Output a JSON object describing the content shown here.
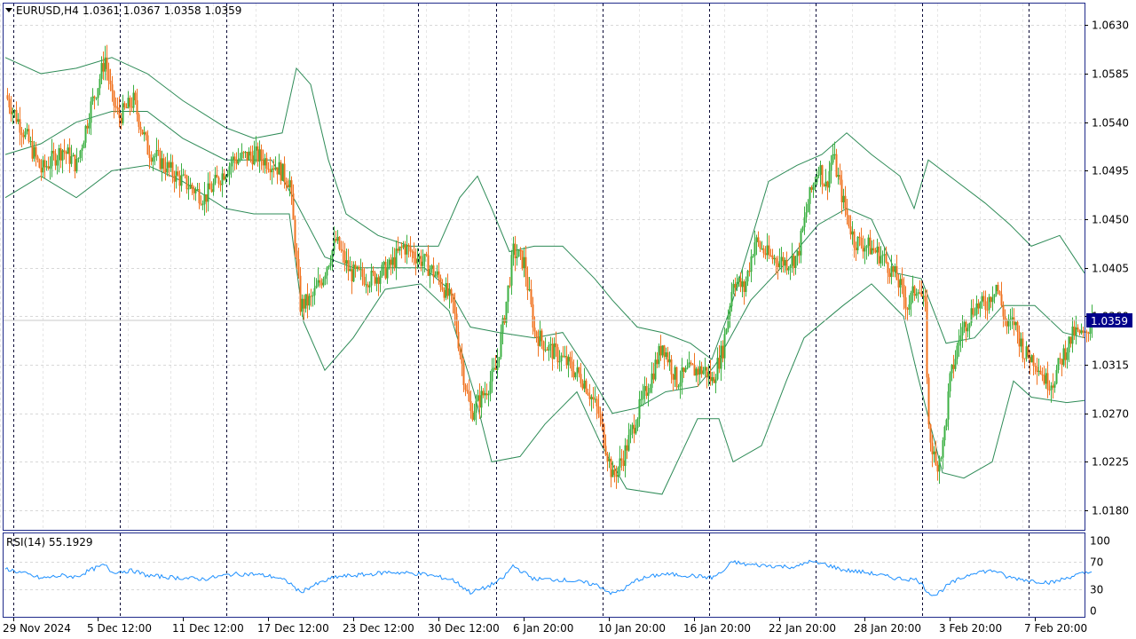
{
  "symbol": "EURUSD,H4",
  "ohlc_readout": "1.0361 1.0367 1.0358 1.0359",
  "current_price_label": "1.0359",
  "rsi_label": "RSI(14) 55.1929",
  "colors": {
    "background": "#ffffff",
    "frame": "#1f2a8a",
    "bull_candle": "#3cb043",
    "bear_candle": "#f07320",
    "bollinger": "#2e8b57",
    "rsi_line": "#1e90ff",
    "grid": "#d8d8d8",
    "price_tag": "#00008b"
  },
  "chart_data": [
    {
      "type": "candlestick",
      "title": "EURUSD,H4",
      "indicator": "Bollinger Bands",
      "ylim": [
        1.0162,
        1.065
      ],
      "y_ticks": [
        "1.0630",
        "1.0585",
        "1.0540",
        "1.0495",
        "1.0450",
        "1.0405",
        "1.0360",
        "1.0315",
        "1.0270",
        "1.0225",
        "1.0180"
      ],
      "x_ticks": [
        "29 Nov 2024",
        "5 Dec 12:00",
        "11 Dec 12:00",
        "17 Dec 12:00",
        "23 Dec 12:00",
        "30 Dec 12:00",
        "6 Jan 20:00",
        "10 Jan 20:00",
        "16 Jan 20:00",
        "22 Jan 20:00",
        "28 Jan 20:00",
        "3 Feb 20:00",
        "7 Feb 20:00"
      ],
      "last_price": 1.0359,
      "close_path": [
        [
          0,
          1.0565
        ],
        [
          12,
          1.0525
        ],
        [
          20,
          1.0495
        ],
        [
          32,
          1.0515
        ],
        [
          40,
          1.05
        ],
        [
          48,
          1.0555
        ],
        [
          52,
          1.0575
        ],
        [
          56,
          1.06
        ],
        [
          60,
          1.056
        ],
        [
          64,
          1.0545
        ],
        [
          72,
          1.056
        ],
        [
          80,
          1.0515
        ],
        [
          96,
          1.049
        ],
        [
          112,
          1.047
        ],
        [
          128,
          1.0505
        ],
        [
          140,
          1.051
        ],
        [
          152,
          1.05
        ],
        [
          160,
          1.0485
        ],
        [
          166,
          1.037
        ],
        [
          172,
          1.0375
        ],
        [
          178,
          1.0395
        ],
        [
          186,
          1.043
        ],
        [
          194,
          1.04
        ],
        [
          206,
          1.0395
        ],
        [
          216,
          1.0405
        ],
        [
          224,
          1.0425
        ],
        [
          236,
          1.041
        ],
        [
          244,
          1.0395
        ],
        [
          252,
          1.037
        ],
        [
          258,
          1.0305
        ],
        [
          262,
          1.027
        ],
        [
          270,
          1.029
        ],
        [
          276,
          1.031
        ],
        [
          280,
          1.035
        ],
        [
          286,
          1.042
        ],
        [
          292,
          1.041
        ],
        [
          298,
          1.0345
        ],
        [
          306,
          1.033
        ],
        [
          314,
          1.032
        ],
        [
          326,
          1.03
        ],
        [
          334,
          1.027
        ],
        [
          338,
          1.024
        ],
        [
          342,
          1.021
        ],
        [
          348,
          1.023
        ],
        [
          356,
          1.027
        ],
        [
          364,
          1.0305
        ],
        [
          370,
          1.0335
        ],
        [
          378,
          1.03
        ],
        [
          386,
          1.031
        ],
        [
          394,
          1.031
        ],
        [
          398,
          1.03
        ],
        [
          404,
          1.033
        ],
        [
          410,
          1.0395
        ],
        [
          416,
          1.0385
        ],
        [
          422,
          1.043
        ],
        [
          430,
          1.0415
        ],
        [
          440,
          1.041
        ],
        [
          446,
          1.0415
        ],
        [
          452,
          1.0465
        ],
        [
          458,
          1.05
        ],
        [
          462,
          1.048
        ],
        [
          466,
          1.051
        ],
        [
          472,
          1.0465
        ],
        [
          478,
          1.043
        ],
        [
          486,
          1.0425
        ],
        [
          494,
          1.0415
        ],
        [
          502,
          1.0395
        ],
        [
          508,
          1.037
        ],
        [
          514,
          1.039
        ],
        [
          518,
          1.0365
        ],
        [
          520,
          1.0255
        ],
        [
          524,
          1.022
        ],
        [
          528,
          1.024
        ],
        [
          532,
          1.03
        ],
        [
          538,
          1.0345
        ],
        [
          546,
          1.037
        ],
        [
          552,
          1.037
        ],
        [
          558,
          1.039
        ],
        [
          564,
          1.035
        ],
        [
          568,
          1.0355
        ],
        [
          574,
          1.0325
        ],
        [
          580,
          1.032
        ],
        [
          586,
          1.03
        ],
        [
          590,
          1.03
        ],
        [
          596,
          1.0325
        ],
        [
          602,
          1.0345
        ],
        [
          608,
          1.034
        ],
        [
          612,
          1.0359
        ]
      ],
      "bollinger": {
        "upper": [
          [
            0,
            1.06
          ],
          [
            20,
            1.0585
          ],
          [
            40,
            1.059
          ],
          [
            60,
            1.06
          ],
          [
            80,
            1.0585
          ],
          [
            100,
            1.056
          ],
          [
            124,
            1.0535
          ],
          [
            140,
            1.0525
          ],
          [
            156,
            1.053
          ],
          [
            164,
            1.059
          ],
          [
            172,
            1.0575
          ],
          [
            182,
            1.0505
          ],
          [
            192,
            1.0455
          ],
          [
            210,
            1.0435
          ],
          [
            228,
            1.0425
          ],
          [
            244,
            1.0425
          ],
          [
            256,
            1.047
          ],
          [
            266,
            1.049
          ],
          [
            274,
            1.046
          ],
          [
            284,
            1.042
          ],
          [
            298,
            1.0425
          ],
          [
            314,
            1.0425
          ],
          [
            332,
            1.0395
          ],
          [
            342,
            1.0375
          ],
          [
            356,
            1.035
          ],
          [
            370,
            1.0345
          ],
          [
            386,
            1.0335
          ],
          [
            398,
            1.032
          ],
          [
            408,
            1.0365
          ],
          [
            420,
            1.043
          ],
          [
            430,
            1.0485
          ],
          [
            446,
            1.05
          ],
          [
            460,
            1.051
          ],
          [
            474,
            1.053
          ],
          [
            488,
            1.051
          ],
          [
            504,
            1.049
          ],
          [
            512,
            1.046
          ],
          [
            520,
            1.0505
          ],
          [
            536,
            1.0485
          ],
          [
            552,
            1.0465
          ],
          [
            566,
            1.0445
          ],
          [
            578,
            1.0425
          ],
          [
            594,
            1.0435
          ],
          [
            608,
            1.04
          ]
        ],
        "middle": [
          [
            0,
            1.051
          ],
          [
            20,
            1.052
          ],
          [
            40,
            1.054
          ],
          [
            60,
            1.055
          ],
          [
            80,
            1.055
          ],
          [
            100,
            1.0525
          ],
          [
            124,
            1.0505
          ],
          [
            150,
            1.0505
          ],
          [
            164,
            1.0465
          ],
          [
            180,
            1.0415
          ],
          [
            196,
            1.0405
          ],
          [
            216,
            1.0405
          ],
          [
            236,
            1.0405
          ],
          [
            250,
            1.0385
          ],
          [
            262,
            1.035
          ],
          [
            278,
            1.0345
          ],
          [
            298,
            1.034
          ],
          [
            314,
            1.0345
          ],
          [
            328,
            1.031
          ],
          [
            342,
            1.027
          ],
          [
            356,
            1.0275
          ],
          [
            372,
            1.029
          ],
          [
            390,
            1.0295
          ],
          [
            400,
            1.0315
          ],
          [
            420,
            1.0375
          ],
          [
            440,
            1.041
          ],
          [
            458,
            1.0445
          ],
          [
            474,
            1.046
          ],
          [
            488,
            1.045
          ],
          [
            502,
            1.04
          ],
          [
            516,
            1.0395
          ],
          [
            530,
            1.0335
          ],
          [
            546,
            1.034
          ],
          [
            562,
            1.037
          ],
          [
            580,
            1.037
          ],
          [
            596,
            1.0345
          ],
          [
            608,
            1.034
          ]
        ],
        "lower": [
          [
            0,
            1.047
          ],
          [
            20,
            1.049
          ],
          [
            40,
            1.047
          ],
          [
            60,
            1.0495
          ],
          [
            80,
            1.05
          ],
          [
            100,
            1.0485
          ],
          [
            124,
            1.046
          ],
          [
            140,
            1.0455
          ],
          [
            160,
            1.0455
          ],
          [
            168,
            1.0355
          ],
          [
            180,
            1.031
          ],
          [
            196,
            1.034
          ],
          [
            214,
            1.0385
          ],
          [
            234,
            1.039
          ],
          [
            250,
            1.0365
          ],
          [
            264,
            1.029
          ],
          [
            274,
            1.0225
          ],
          [
            290,
            1.023
          ],
          [
            304,
            1.026
          ],
          [
            322,
            1.029
          ],
          [
            336,
            1.024
          ],
          [
            350,
            1.02
          ],
          [
            370,
            1.0195
          ],
          [
            390,
            1.0265
          ],
          [
            402,
            1.0265
          ],
          [
            410,
            1.0225
          ],
          [
            426,
            1.024
          ],
          [
            440,
            1.03
          ],
          [
            450,
            1.034
          ],
          [
            472,
            1.037
          ],
          [
            488,
            1.039
          ],
          [
            506,
            1.036
          ],
          [
            514,
            1.0305
          ],
          [
            528,
            1.0215
          ],
          [
            540,
            1.021
          ],
          [
            556,
            1.0225
          ],
          [
            568,
            1.03
          ],
          [
            578,
            1.0285
          ],
          [
            598,
            1.028
          ],
          [
            608,
            1.0282
          ]
        ]
      }
    },
    {
      "type": "line",
      "title": "RSI(14) 55.1929",
      "ylim": [
        0,
        100
      ],
      "y_ticks": [
        "100",
        "70",
        "30",
        "0"
      ],
      "last_value": 55.1929,
      "series": [
        {
          "values": [
            [
              0,
              60
            ],
            [
              12,
              52
            ],
            [
              20,
              46
            ],
            [
              32,
              50
            ],
            [
              40,
              48
            ],
            [
              48,
              58
            ],
            [
              56,
              65
            ],
            [
              60,
              55
            ],
            [
              72,
              57
            ],
            [
              80,
              50
            ],
            [
              96,
              47
            ],
            [
              112,
              45
            ],
            [
              128,
              52
            ],
            [
              140,
              52
            ],
            [
              152,
              48
            ],
            [
              160,
              40
            ],
            [
              166,
              26
            ],
            [
              172,
              34
            ],
            [
              186,
              48
            ],
            [
              206,
              52
            ],
            [
              216,
              55
            ],
            [
              236,
              52
            ],
            [
              244,
              48
            ],
            [
              252,
              44
            ],
            [
              262,
              26
            ],
            [
              270,
              32
            ],
            [
              280,
              45
            ],
            [
              286,
              64
            ],
            [
              298,
              45
            ],
            [
              314,
              44
            ],
            [
              326,
              40
            ],
            [
              334,
              36
            ],
            [
              342,
              24
            ],
            [
              348,
              30
            ],
            [
              356,
              44
            ],
            [
              370,
              52
            ],
            [
              386,
              50
            ],
            [
              398,
              47
            ],
            [
              404,
              55
            ],
            [
              410,
              70
            ],
            [
              416,
              66
            ],
            [
              430,
              64
            ],
            [
              446,
              62
            ],
            [
              452,
              70
            ],
            [
              462,
              66
            ],
            [
              472,
              58
            ],
            [
              486,
              54
            ],
            [
              502,
              46
            ],
            [
              514,
              44
            ],
            [
              520,
              26
            ],
            [
              524,
              22
            ],
            [
              532,
              38
            ],
            [
              546,
              55
            ],
            [
              558,
              57
            ],
            [
              564,
              48
            ],
            [
              580,
              42
            ],
            [
              590,
              40
            ],
            [
              602,
              50
            ],
            [
              612,
              55
            ]
          ]
        }
      ]
    }
  ]
}
